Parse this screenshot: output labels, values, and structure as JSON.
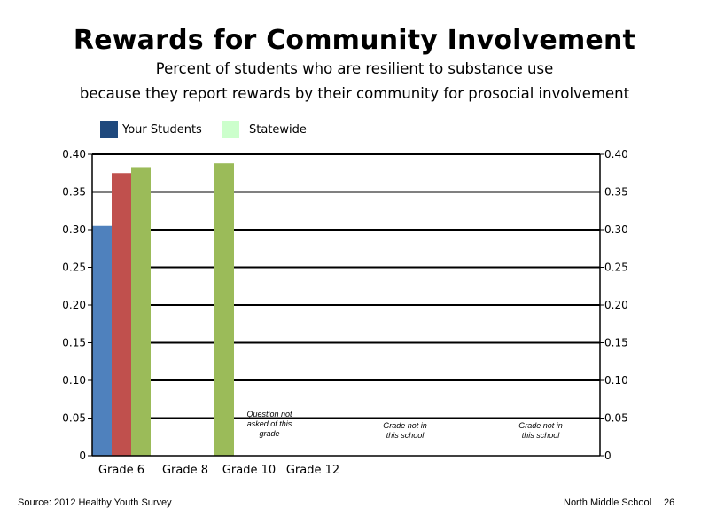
{
  "page": {
    "source": "Source: 2012 Healthy Youth Survey",
    "school": "North Middle  School",
    "page_number": "26"
  },
  "legend": {
    "items": [
      {
        "label": "Your Students",
        "color": "#1f497d"
      },
      {
        "label": "Statewide",
        "color": "#ccffcc"
      }
    ]
  },
  "chart_data": {
    "type": "bar",
    "title": "Rewards for Community Involvement",
    "subtitle_lines": [
      "Percent of students who are resilient to substance use",
      "because they report rewards by their community for prosocial involvement"
    ],
    "categories": [
      "Grade 6",
      "Grade 8",
      "Grade 10",
      "Grade 12"
    ],
    "bar_colors": [
      "#4f81bd",
      "#c0504d",
      "#9bbb59"
    ],
    "bars": [
      {
        "category": "Grade 6",
        "values": [
          0.305,
          0.375,
          0.383
        ]
      },
      {
        "category": "Grade 8",
        "values": [
          null,
          null,
          0.388
        ]
      }
    ],
    "ylim": [
      0,
      0.4
    ],
    "yticks": [
      {
        "value": 0,
        "label": "0"
      },
      {
        "value": 0.05,
        "label": "0.05"
      },
      {
        "value": 0.1,
        "label": "0.10"
      },
      {
        "value": 0.15,
        "label": "0.15"
      },
      {
        "value": 0.2,
        "label": "0.20"
      },
      {
        "value": 0.25,
        "label": "0.25"
      },
      {
        "value": 0.3,
        "label": "0.30"
      },
      {
        "value": 0.35,
        "label": "0.35"
      },
      {
        "value": 0.4,
        "label": "0.40"
      }
    ],
    "grid": true,
    "annotations": [
      {
        "lines": [
          "Question not",
          "asked of this",
          "grade"
        ]
      },
      {
        "lines": [
          "Grade not in",
          "this school"
        ]
      },
      {
        "lines": [
          "Grade not in",
          "this school"
        ]
      }
    ]
  }
}
